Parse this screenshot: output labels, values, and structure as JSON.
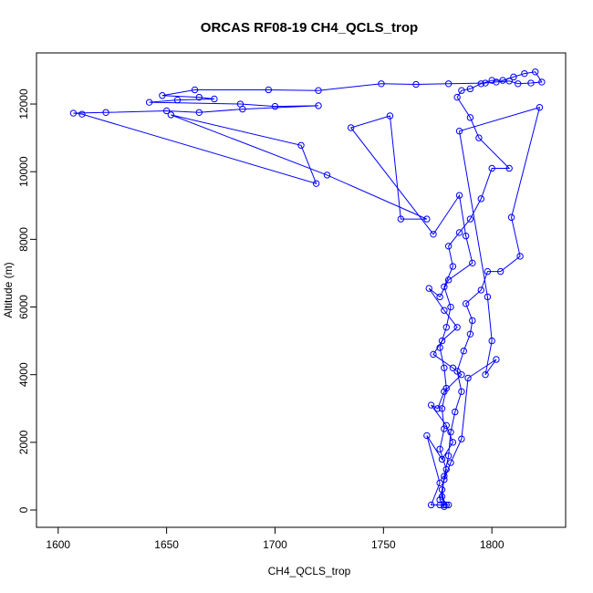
{
  "chart_data": {
    "type": "line",
    "title": "ORCAS RF08-19 CH4_QCLS_trop",
    "xlabel": "CH4_QCLS_trop",
    "ylabel": "Altitude (m)",
    "x": [
      1778,
      1777,
      1779,
      1776,
      1778,
      1777,
      1779,
      1778,
      1776,
      1779,
      1781,
      1778,
      1782,
      1780,
      1785,
      1790,
      1795,
      1800,
      1808,
      1794,
      1790,
      1784,
      1786,
      1790,
      1795,
      1800,
      1805,
      1810,
      1815,
      1820,
      1823,
      1818,
      1812,
      1808,
      1802,
      1797,
      1780,
      1765,
      1749,
      1720,
      1697,
      1663,
      1648,
      1665,
      1672,
      1655,
      1642,
      1684,
      1700,
      1720,
      1685,
      1665,
      1650,
      1622,
      1607,
      1611,
      1719,
      1712,
      1652,
      1724,
      1770,
      1758,
      1753,
      1735,
      1773,
      1785,
      1788,
      1791,
      1780,
      1776,
      1771,
      1778,
      1784,
      1777,
      1773,
      1782,
      1786,
      1778,
      1775,
      1772,
      1779,
      1782,
      1777,
      1770,
      1776,
      1772,
      1776,
      1780,
      1779,
      1777,
      1778,
      1780,
      1781,
      1783,
      1786,
      1784,
      1787,
      1790,
      1791,
      1788,
      1795,
      1798,
      1804,
      1813,
      1809,
      1822,
      1785,
      1798,
      1800,
      1797,
      1802,
      1789,
      1786,
      1781,
      1778,
      1776,
      1778
    ],
    "series": [
      {
        "name": "CH4_QCLS_trop",
        "color": "#0000ff",
        "values": [
          150,
          600,
          1200,
          1800,
          2400,
          3000,
          3600,
          4200,
          4800,
          5400,
          6000,
          6600,
          7200,
          7800,
          8200,
          8600,
          9200,
          10100,
          10100,
          11000,
          11600,
          12200,
          12400,
          12450,
          12600,
          12700,
          12700,
          12800,
          12900,
          12950,
          12650,
          12620,
          12600,
          12680,
          12650,
          12620,
          12600,
          12580,
          12600,
          12400,
          12420,
          12420,
          12250,
          12200,
          12150,
          12120,
          12050,
          12000,
          11930,
          11950,
          11850,
          11750,
          11800,
          11750,
          11730,
          11700,
          9650,
          10780,
          11680,
          9900,
          8600,
          8600,
          11650,
          11300,
          8150,
          9300,
          8100,
          7300,
          6800,
          6300,
          6550,
          5900,
          5400,
          5000,
          4600,
          4200,
          4000,
          3500,
          3000,
          3100,
          2500,
          2000,
          1500,
          2200,
          800,
          150,
          150,
          150,
          150,
          400,
          1000,
          1600,
          2300,
          2900,
          3500,
          4100,
          4700,
          5200,
          5600,
          6100,
          6500,
          7050,
          7050,
          7500,
          8650,
          11900,
          11200,
          6300,
          5000,
          4000,
          4450,
          3900,
          2100,
          1400,
          900,
          300,
          100
        ]
      }
    ],
    "xlim": [
      1590,
      1834
    ],
    "ylim": [
      -512,
      13511
    ],
    "xticks": [
      1600,
      1650,
      1700,
      1750,
      1800
    ],
    "yticks": [
      0,
      2000,
      4000,
      6000,
      8000,
      10000,
      12000
    ],
    "grid": false
  }
}
